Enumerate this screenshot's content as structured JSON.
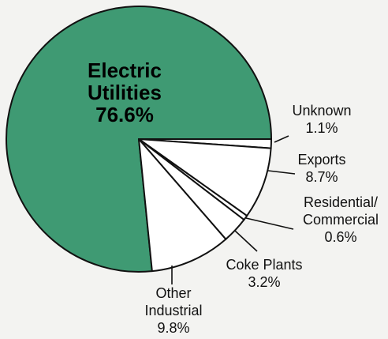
{
  "chart_data": {
    "type": "pie",
    "title": "",
    "colors": {
      "main_slice": "#3f9a73",
      "other_slices": "#ffffff",
      "outline": "#111111"
    },
    "slices": [
      {
        "label": "Electric Utilities",
        "value": 76.6,
        "display": "76.6%",
        "label_lines": [
          "Electric",
          "Utilities",
          "76.6%"
        ],
        "label_placement": "inside"
      },
      {
        "label": "Unknown",
        "value": 1.1,
        "display": "1.1%",
        "label_lines": [
          "Unknown",
          "1.1%"
        ],
        "label_placement": "outside"
      },
      {
        "label": "Exports",
        "value": 8.7,
        "display": "8.7%",
        "label_lines": [
          "Exports",
          "8.7%"
        ],
        "label_placement": "outside"
      },
      {
        "label": "Residential/ Commercial",
        "value": 0.6,
        "display": "0.6%",
        "label_lines": [
          "Residential/",
          "Commercial",
          "0.6%"
        ],
        "label_placement": "outside"
      },
      {
        "label": "Coke Plants",
        "value": 3.2,
        "display": "3.2%",
        "label_lines": [
          "Coke Plants",
          "3.2%"
        ],
        "label_placement": "outside"
      },
      {
        "label": "Other Industrial",
        "value": 9.8,
        "display": "9.8%",
        "label_lines": [
          "Other",
          "Industrial",
          "9.8%"
        ],
        "label_placement": "outside"
      }
    ]
  }
}
